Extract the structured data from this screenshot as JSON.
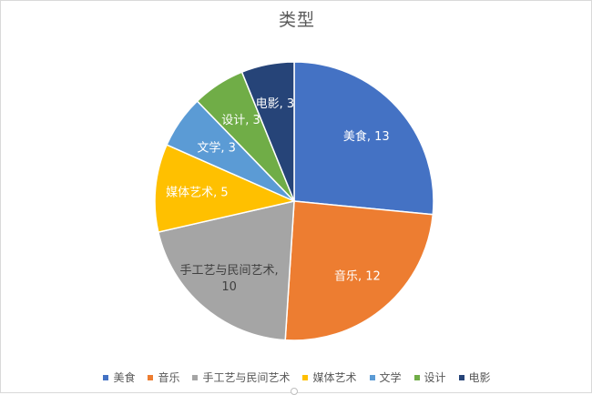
{
  "chart_data": {
    "type": "pie",
    "title": "类型",
    "categories": [
      "美食",
      "音乐",
      "手工艺与民间艺术",
      "媒体艺术",
      "文学",
      "设计",
      "电影"
    ],
    "values": [
      13,
      12,
      10,
      5,
      3,
      3,
      3
    ],
    "labels": [
      "美食, 13",
      "音乐, 12",
      "手工艺与民间艺术,",
      "媒体艺术, 5",
      "文学, 3",
      "设计, 3",
      "电影, 3"
    ],
    "labels_line2": [
      "",
      "",
      "10",
      "",
      "",
      "",
      ""
    ],
    "colors": [
      "#4472c4",
      "#ed7d31",
      "#a5a5a5",
      "#ffc000",
      "#5b9bd5",
      "#70ad47",
      "#264478"
    ],
    "legend_position": "bottom",
    "start_angle": "12 o'clock",
    "direction": "clockwise"
  }
}
